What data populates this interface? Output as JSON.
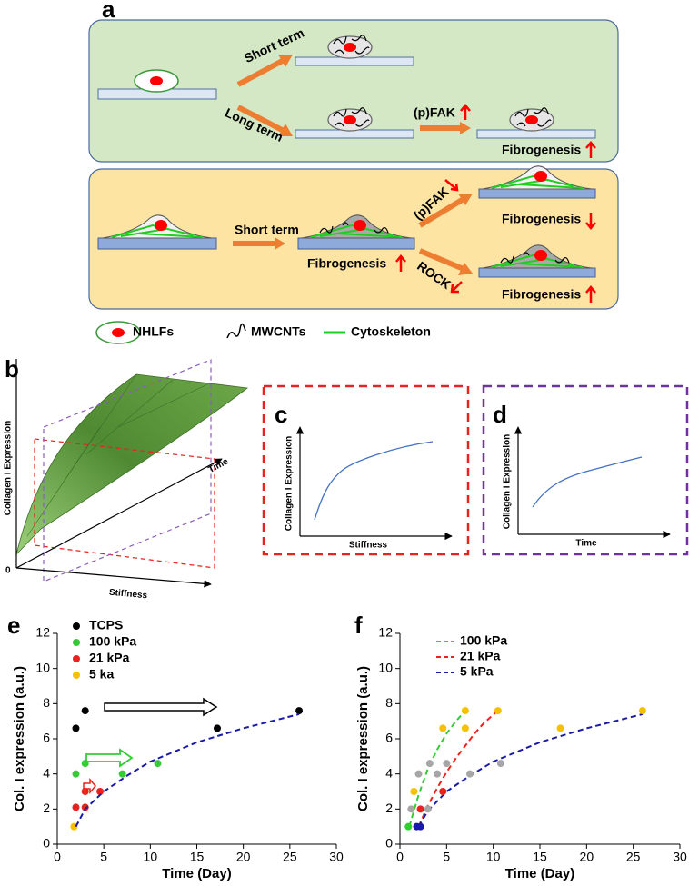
{
  "panel_a": {
    "label": "a",
    "top": {
      "short_term": "Short term",
      "long_term": "Long term",
      "pfak": "(p)FAK",
      "fibrogenesis": "Fibrogenesis"
    },
    "bottom": {
      "short_term": "Short term",
      "fibrogenesis_middle": "Fibrogenesis",
      "pfak": "(p)FAK",
      "rock": "ROCK",
      "fibrogenesis_top": "Fibrogenesis",
      "fibrogenesis_bottom": "Fibrogenesis"
    },
    "legend": [
      "NHLFs",
      "MWCNTs",
      "Cytoskeleton"
    ]
  },
  "panel_b": {
    "label": "b",
    "y_axis": "Collagen I Expression",
    "z_axis": "Time",
    "x_axis": "Stiffness",
    "origin": "0"
  },
  "panel_c": {
    "label": "c",
    "y_axis": "Collagen I Expression",
    "x_axis": "Stiffness"
  },
  "panel_d": {
    "label": "d",
    "y_axis": "Collagen I Expression",
    "x_axis": "Time"
  },
  "chart_data": [
    {
      "type": "scatter",
      "panel_label": "e",
      "y_label": "Col. I expression (a.u.)",
      "x_label": "Time (Day)",
      "xlim": [
        0,
        30
      ],
      "ylim": [
        0,
        12
      ],
      "xticks": [
        0,
        5,
        10,
        15,
        20,
        25,
        30
      ],
      "yticks": [
        0,
        2,
        4,
        6,
        8,
        10,
        12
      ],
      "series": [
        {
          "name": "TCPS",
          "color": "#000000",
          "x": [
            2,
            3,
            17.2,
            26
          ],
          "values": [
            6.6,
            7.6,
            6.6,
            7.6
          ]
        },
        {
          "name": "100 kPa",
          "color": "#33cc33",
          "x": [
            2,
            3,
            7,
            10.8
          ],
          "values": [
            4,
            4.6,
            4,
            4.6
          ]
        },
        {
          "name": "21 kPa",
          "color": "#e8231d",
          "x": [
            2,
            3,
            3,
            4.6
          ],
          "values": [
            2.1,
            2.1,
            3,
            3
          ]
        },
        {
          "name": "5 ka",
          "color": "#f5c000",
          "x": [
            1.8
          ],
          "values": [
            1
          ]
        },
        {
          "type": "line",
          "color": "#1a1aa8",
          "x": [
            2,
            3,
            5,
            7.5,
            10,
            15,
            20,
            26
          ],
          "values": [
            1,
            2,
            3,
            3.9,
            4.7,
            5.8,
            6.6,
            7.4
          ]
        }
      ]
    },
    {
      "type": "scatter",
      "panel_label": "f",
      "y_label": "Col. I expression (a.u.)",
      "x_label": "Time (Day)",
      "xlim": [
        0,
        30
      ],
      "ylim": [
        0,
        12
      ],
      "xticks": [
        0,
        5,
        10,
        15,
        20,
        25,
        30
      ],
      "yticks": [
        0,
        2,
        4,
        6,
        8,
        10,
        12
      ],
      "series": [
        {
          "type": "line",
          "name": "100 kPa",
          "color": "#33cc33",
          "x": [
            1,
            2,
            3,
            4,
            5,
            6,
            7
          ],
          "values": [
            1,
            2.8,
            4.3,
            5.4,
            6.3,
            7,
            7.6
          ]
        },
        {
          "type": "line",
          "name": "21 kPa",
          "color": "#e8231d",
          "x": [
            2,
            3,
            4,
            5,
            6,
            7,
            8,
            9,
            10.5
          ],
          "values": [
            1,
            2.2,
            3.2,
            4.1,
            4.9,
            5.6,
            6.3,
            6.9,
            7.6
          ]
        },
        {
          "type": "line",
          "name": "5 kPa",
          "color": "#1a1aa8",
          "x": [
            2,
            3,
            5,
            7.5,
            10,
            15,
            20,
            26
          ],
          "values": [
            1,
            1.9,
            3,
            3.9,
            4.7,
            5.8,
            6.6,
            7.4
          ]
        },
        {
          "color": "#a6a6a6",
          "x": [
            1.2,
            2,
            3,
            3.2,
            4,
            5,
            7.5,
            10.8
          ],
          "values": [
            2,
            4,
            2,
            4.6,
            4,
            4.6,
            4,
            4.6
          ]
        },
        {
          "color": "#f5c000",
          "x": [
            1.5,
            4.6,
            7,
            7,
            10.5,
            17.2,
            26
          ],
          "values": [
            3,
            6.6,
            7.6,
            6.6,
            7.6,
            6.6,
            7.6
          ]
        },
        {
          "color": "#33cc33",
          "x": [
            0.9
          ],
          "values": [
            1
          ]
        },
        {
          "color": "#e8231d",
          "x": [
            2.2,
            4.6
          ],
          "values": [
            2,
            3
          ]
        },
        {
          "color": "#1a1aa8",
          "x": [
            1.8,
            2.2
          ],
          "values": [
            1,
            1
          ]
        }
      ]
    }
  ]
}
